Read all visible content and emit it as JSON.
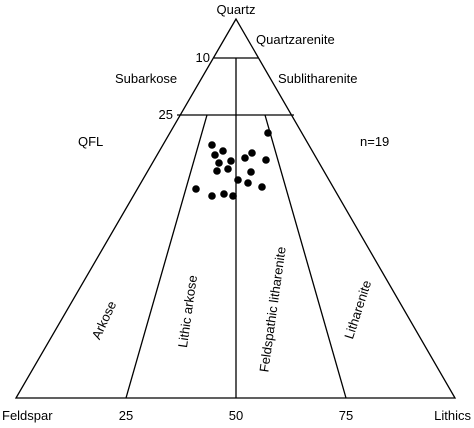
{
  "diagram": {
    "type": "ternary-qfl",
    "vertices": {
      "top": "Quartz",
      "left": "Feldspar",
      "right": "Lithics"
    },
    "label_qfl": "QFL",
    "label_n": "n=19",
    "top_ticks": [
      "10",
      "25"
    ],
    "bottom_ticks": [
      "25",
      "50",
      "75"
    ],
    "fields": {
      "quartzarenite": "Quartzarenite",
      "subarkose": "Subarkose",
      "sublitharenite": "Sublitharenite",
      "arkose": "Arkose",
      "lithic_arkose": "Lithic arkose",
      "feldspathic_litharenite": "Feldspathic litharenite",
      "litharenite": "Litharenite"
    },
    "point_count": 19
  }
}
